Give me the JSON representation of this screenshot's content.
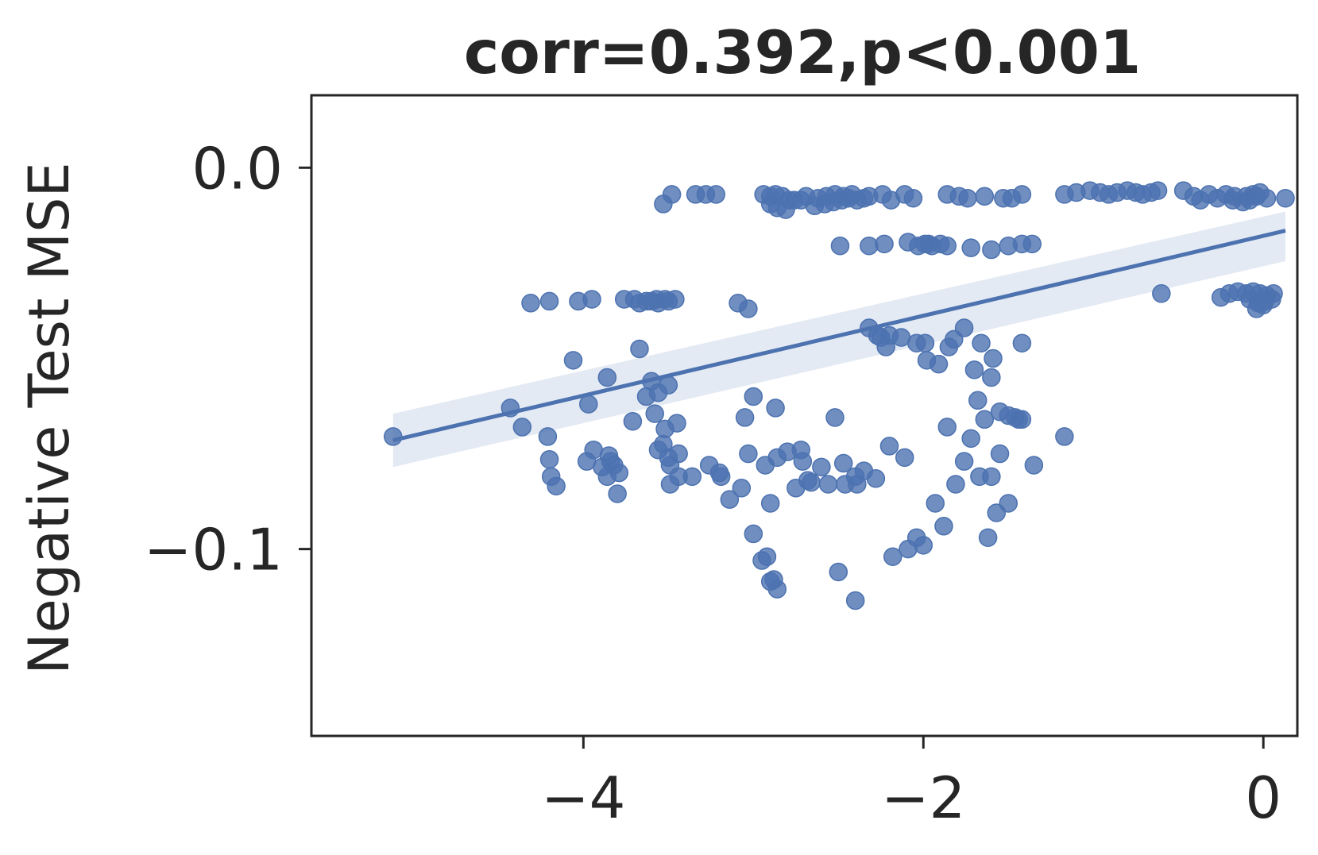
{
  "chart_data": {
    "type": "scatter",
    "title": "corr=0.392,p<0.001",
    "xlabel": "",
    "ylabel": "Negative Test MSE",
    "xlim": [
      -5.6,
      0.2
    ],
    "ylim": [
      -0.149,
      0.019
    ],
    "xticks": [
      {
        "value": -4,
        "label": "−4"
      },
      {
        "value": -2,
        "label": "−2"
      },
      {
        "value": 0,
        "label": "0"
      }
    ],
    "yticks": [
      {
        "value": 0.0,
        "label": "0.0"
      },
      {
        "value": -0.1,
        "label": "−0.1"
      }
    ],
    "grid": false,
    "legend": "none",
    "colors": {
      "points": "#4c72b0",
      "line": "#4c72b0",
      "band": "#4c72b0",
      "axes": "#262626",
      "text": "#262626"
    },
    "regression": {
      "x": [
        -5.12,
        0.13
      ],
      "y": [
        -0.0715,
        -0.0165
      ],
      "ci_upper": [
        -0.0645,
        -0.0115
      ],
      "ci_lower": [
        -0.0785,
        -0.0245
      ]
    },
    "points": [
      [
        -5.12,
        -0.0705
      ],
      [
        -4.43,
        -0.063
      ],
      [
        -4.36,
        -0.068
      ],
      [
        -4.2,
        -0.0765
      ],
      [
        -4.19,
        -0.081
      ],
      [
        -4.16,
        -0.0835
      ],
      [
        -4.21,
        -0.0705
      ],
      [
        -4.31,
        -0.0355
      ],
      [
        -4.2,
        -0.035
      ],
      [
        -4.03,
        -0.035
      ],
      [
        -3.95,
        -0.0345
      ],
      [
        -4.06,
        -0.0505
      ],
      [
        -3.98,
        -0.077
      ],
      [
        -3.94,
        -0.074
      ],
      [
        -3.89,
        -0.0785
      ],
      [
        -3.86,
        -0.081
      ],
      [
        -3.85,
        -0.0755
      ],
      [
        -3.82,
        -0.078
      ],
      [
        -3.79,
        -0.08
      ],
      [
        -3.84,
        -0.077
      ],
      [
        -3.8,
        -0.0855
      ],
      [
        -3.76,
        -0.0345
      ],
      [
        -3.7,
        -0.0345
      ],
      [
        -3.63,
        -0.035
      ],
      [
        -3.57,
        -0.0345
      ],
      [
        -3.56,
        -0.0355
      ],
      [
        -3.52,
        -0.0345
      ],
      [
        -3.46,
        -0.0345
      ],
      [
        -3.5,
        -0.035
      ],
      [
        -3.6,
        -0.035
      ],
      [
        -3.67,
        -0.0355
      ],
      [
        -3.53,
        -0.0095
      ],
      [
        -3.48,
        -0.007
      ],
      [
        -3.97,
        -0.062
      ],
      [
        -3.86,
        -0.055
      ],
      [
        -3.71,
        -0.0665
      ],
      [
        -3.67,
        -0.0475
      ],
      [
        -3.63,
        -0.06
      ],
      [
        -3.6,
        -0.056
      ],
      [
        -3.56,
        -0.059
      ],
      [
        -3.5,
        -0.057
      ],
      [
        -3.58,
        -0.0645
      ],
      [
        -3.52,
        -0.0685
      ],
      [
        -3.45,
        -0.067
      ],
      [
        -3.56,
        -0.074
      ],
      [
        -3.53,
        -0.0725
      ],
      [
        -3.5,
        -0.076
      ],
      [
        -3.44,
        -0.075
      ],
      [
        -3.49,
        -0.078
      ],
      [
        -3.44,
        -0.081
      ],
      [
        -3.49,
        -0.083
      ],
      [
        -3.36,
        -0.081
      ],
      [
        -3.26,
        -0.078
      ],
      [
        -3.2,
        -0.08
      ],
      [
        -3.34,
        -0.007
      ],
      [
        -3.28,
        -0.007
      ],
      [
        -3.22,
        -0.007
      ],
      [
        -3.09,
        -0.0355
      ],
      [
        -3.03,
        -0.037
      ],
      [
        -3.0,
        -0.06
      ],
      [
        -3.05,
        -0.0655
      ],
      [
        -3.19,
        -0.081
      ],
      [
        -3.14,
        -0.087
      ],
      [
        -3.07,
        -0.084
      ],
      [
        -3.03,
        -0.075
      ],
      [
        -2.9,
        -0.088
      ],
      [
        -3.0,
        -0.096
      ],
      [
        -2.95,
        -0.103
      ],
      [
        -2.92,
        -0.102
      ],
      [
        -2.9,
        -0.1085
      ],
      [
        -2.88,
        -0.108
      ],
      [
        -2.86,
        -0.1105
      ],
      [
        -2.93,
        -0.078
      ],
      [
        -2.86,
        -0.076
      ],
      [
        -2.8,
        -0.0745
      ],
      [
        -2.72,
        -0.074
      ],
      [
        -2.87,
        -0.063
      ],
      [
        -2.75,
        -0.084
      ],
      [
        -2.68,
        -0.082
      ],
      [
        -2.71,
        -0.077
      ],
      [
        -2.66,
        -0.0825
      ],
      [
        -2.6,
        -0.0785
      ],
      [
        -2.5,
        -0.106
      ],
      [
        -2.4,
        -0.1135
      ],
      [
        -2.52,
        -0.0655
      ],
      [
        -2.56,
        -0.083
      ],
      [
        -2.47,
        -0.0775
      ],
      [
        -2.4,
        -0.081
      ],
      [
        -2.35,
        -0.0795
      ],
      [
        -2.46,
        -0.083
      ],
      [
        -2.39,
        -0.083
      ],
      [
        -2.94,
        -0.007
      ],
      [
        -2.9,
        -0.0075
      ],
      [
        -2.87,
        -0.007
      ],
      [
        -2.83,
        -0.0075
      ],
      [
        -2.79,
        -0.0085
      ],
      [
        -2.9,
        -0.0095
      ],
      [
        -2.86,
        -0.0105
      ],
      [
        -2.81,
        -0.011
      ],
      [
        -2.76,
        -0.0085
      ],
      [
        -2.72,
        -0.0085
      ],
      [
        -2.69,
        -0.0075
      ],
      [
        -2.62,
        -0.008
      ],
      [
        -2.57,
        -0.0075
      ],
      [
        -2.52,
        -0.007
      ],
      [
        -2.47,
        -0.0075
      ],
      [
        -2.42,
        -0.007
      ],
      [
        -2.64,
        -0.01
      ],
      [
        -2.58,
        -0.0095
      ],
      [
        -2.53,
        -0.009
      ],
      [
        -2.48,
        -0.0085
      ],
      [
        -2.44,
        -0.008
      ],
      [
        -2.39,
        -0.0085
      ],
      [
        -2.35,
        -0.008
      ],
      [
        -2.32,
        -0.0075
      ],
      [
        -2.24,
        -0.007
      ],
      [
        -2.49,
        -0.0205
      ],
      [
        -2.32,
        -0.0205
      ],
      [
        -2.23,
        -0.02
      ],
      [
        -2.09,
        -0.0195
      ],
      [
        -2.03,
        -0.0205
      ],
      [
        -1.99,
        -0.02
      ],
      [
        -1.97,
        -0.02
      ],
      [
        -1.86,
        -0.0205
      ],
      [
        -2.19,
        -0.0085
      ],
      [
        -2.11,
        -0.007
      ],
      [
        -2.06,
        -0.008
      ],
      [
        -1.86,
        -0.007
      ],
      [
        -1.79,
        -0.0075
      ],
      [
        -1.74,
        -0.008
      ],
      [
        -1.64,
        -0.0075
      ],
      [
        -1.53,
        -0.008
      ],
      [
        -1.48,
        -0.008
      ],
      [
        -1.42,
        -0.007
      ],
      [
        -1.72,
        -0.021
      ],
      [
        -1.6,
        -0.0215
      ],
      [
        -1.5,
        -0.0205
      ],
      [
        -1.42,
        -0.02
      ],
      [
        -1.36,
        -0.02
      ],
      [
        -1.9,
        -0.02
      ],
      [
        -1.95,
        -0.0205
      ],
      [
        -2.32,
        -0.042
      ],
      [
        -2.27,
        -0.044
      ],
      [
        -2.22,
        -0.047
      ],
      [
        -2.2,
        -0.044
      ],
      [
        -2.13,
        -0.0445
      ],
      [
        -2.04,
        -0.046
      ],
      [
        -1.99,
        -0.046
      ],
      [
        -2.25,
        -0.0445
      ],
      [
        -1.98,
        -0.0505
      ],
      [
        -1.91,
        -0.0515
      ],
      [
        -1.85,
        -0.047
      ],
      [
        -1.82,
        -0.045
      ],
      [
        -1.76,
        -0.042
      ],
      [
        -1.7,
        -0.053
      ],
      [
        -1.66,
        -0.046
      ],
      [
        -1.59,
        -0.05
      ],
      [
        -1.68,
        -0.061
      ],
      [
        -1.64,
        -0.066
      ],
      [
        -1.55,
        -0.064
      ],
      [
        -1.5,
        -0.065
      ],
      [
        -1.46,
        -0.0655
      ],
      [
        -1.44,
        -0.066
      ],
      [
        -1.42,
        -0.066
      ],
      [
        -1.42,
        -0.046
      ],
      [
        -1.86,
        -0.068
      ],
      [
        -1.72,
        -0.071
      ],
      [
        -1.76,
        -0.077
      ],
      [
        -1.67,
        -0.081
      ],
      [
        -1.6,
        -0.081
      ],
      [
        -1.55,
        -0.075
      ],
      [
        -1.35,
        -0.078
      ],
      [
        -1.5,
        -0.088
      ],
      [
        -2.09,
        -0.1
      ],
      [
        -2.0,
        -0.099
      ],
      [
        -1.93,
        -0.088
      ],
      [
        -1.88,
        -0.094
      ],
      [
        -1.81,
        -0.083
      ],
      [
        -1.62,
        -0.097
      ],
      [
        -1.57,
        -0.0905
      ],
      [
        -2.18,
        -0.102
      ],
      [
        -2.04,
        -0.097
      ],
      [
        -2.28,
        -0.0815
      ],
      [
        -2.2,
        -0.073
      ],
      [
        -2.11,
        -0.076
      ],
      [
        -1.6,
        -0.055
      ],
      [
        -1.17,
        -0.007
      ],
      [
        -1.1,
        -0.0065
      ],
      [
        -1.02,
        -0.006
      ],
      [
        -0.96,
        -0.0065
      ],
      [
        -0.91,
        -0.007
      ],
      [
        -0.86,
        -0.0065
      ],
      [
        -0.8,
        -0.006
      ],
      [
        -0.75,
        -0.0065
      ],
      [
        -0.71,
        -0.007
      ],
      [
        -0.66,
        -0.0065
      ],
      [
        -0.62,
        -0.006
      ],
      [
        -0.47,
        -0.006
      ],
      [
        -0.41,
        -0.0075
      ],
      [
        -0.37,
        -0.0085
      ],
      [
        -0.32,
        -0.007
      ],
      [
        -0.27,
        -0.008
      ],
      [
        -0.22,
        -0.007
      ],
      [
        -0.17,
        -0.0075
      ],
      [
        -0.1,
        -0.0075
      ],
      [
        -0.06,
        -0.007
      ],
      [
        -0.02,
        -0.0065
      ],
      [
        0.13,
        -0.008
      ],
      [
        -0.18,
        -0.0085
      ],
      [
        -0.12,
        -0.009
      ],
      [
        -0.08,
        -0.0085
      ],
      [
        -0.04,
        -0.0075
      ],
      [
        0.02,
        -0.008
      ],
      [
        -1.17,
        -0.0705
      ],
      [
        -0.6,
        -0.033
      ],
      [
        -0.25,
        -0.034
      ],
      [
        -0.2,
        -0.033
      ],
      [
        -0.15,
        -0.0325
      ],
      [
        -0.1,
        -0.033
      ],
      [
        -0.06,
        -0.0325
      ],
      [
        -0.02,
        -0.033
      ],
      [
        0.02,
        -0.0335
      ],
      [
        0.06,
        -0.033
      ],
      [
        -0.08,
        -0.0345
      ],
      [
        -0.03,
        -0.0355
      ],
      [
        0.01,
        -0.035
      ],
      [
        0.05,
        -0.0345
      ],
      [
        -0.04,
        -0.037
      ],
      [
        0.0,
        -0.036
      ]
    ]
  }
}
